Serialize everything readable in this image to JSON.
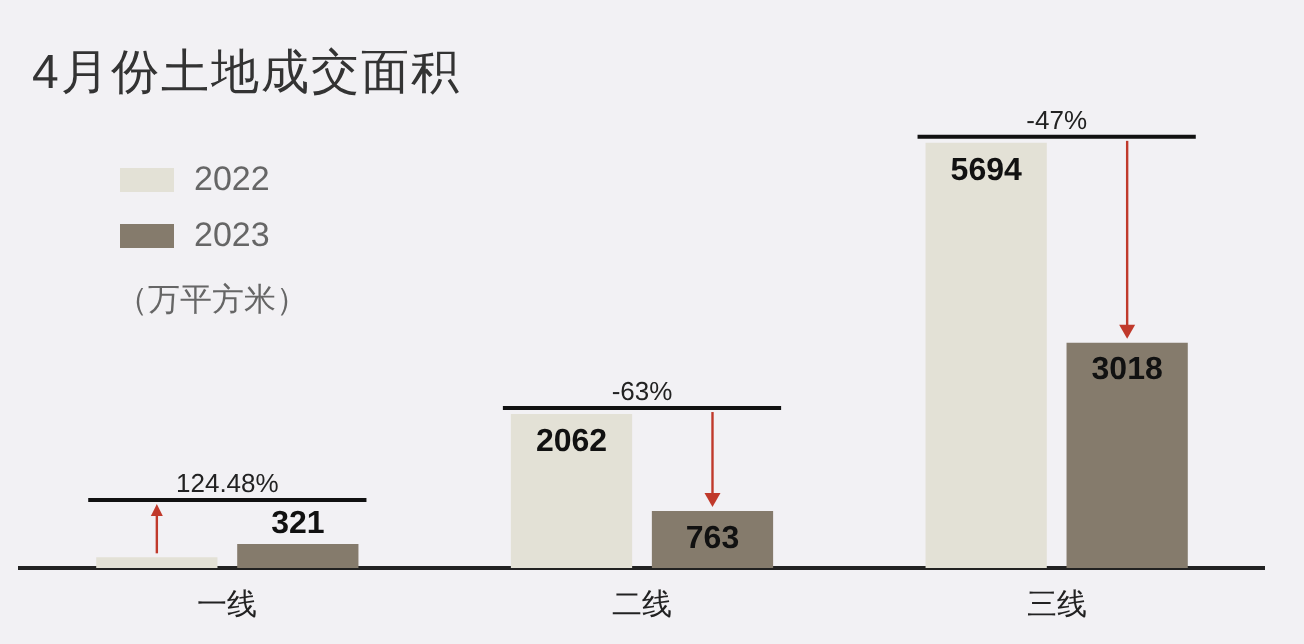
{
  "chart_data": {
    "type": "bar",
    "title": "4月份土地成交面积",
    "ylabel": "（万平方米）",
    "categories": [
      "一线",
      "二线",
      "三线"
    ],
    "series": [
      {
        "name": "2022",
        "color": "#e3e1d6",
        "values": [
          143,
          2062,
          5694
        ],
        "value_labels": [
          null,
          "2062",
          "5694"
        ]
      },
      {
        "name": "2023",
        "color": "#857b6c",
        "values": [
          321,
          763,
          3018
        ],
        "value_labels": [
          "321",
          "763",
          "3018"
        ]
      }
    ],
    "annotations": [
      "124.48%",
      "-63%",
      "-47%"
    ],
    "legend": "top left",
    "grid": false
  }
}
